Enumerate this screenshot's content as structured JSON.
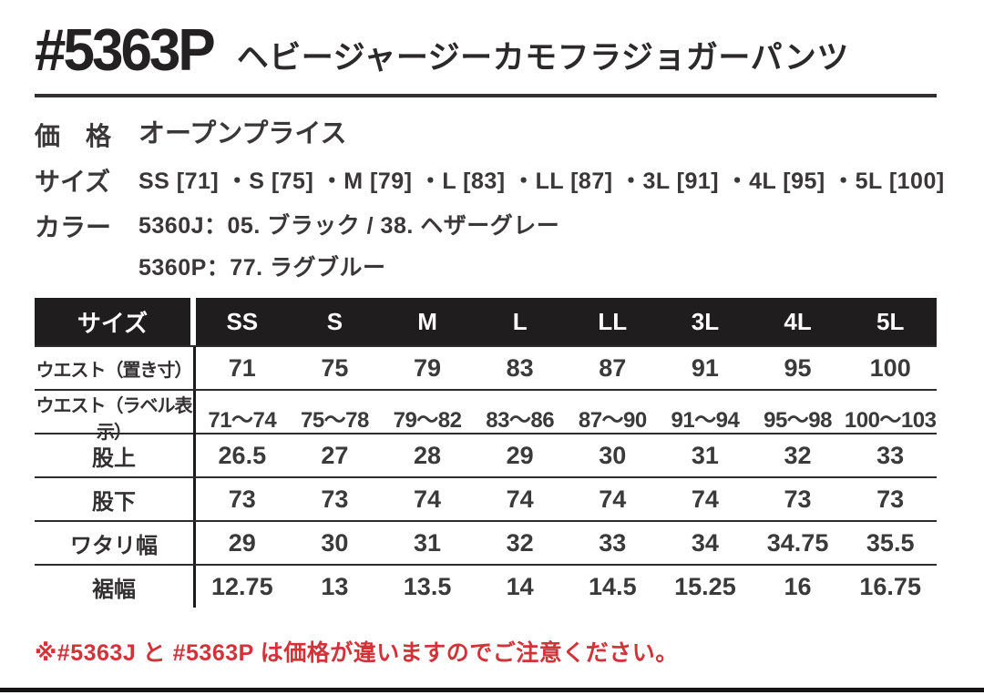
{
  "header": {
    "product_code": "#5363P",
    "product_name": "ヘビージャージーカモフラジョガーパンツ"
  },
  "info": {
    "price_label": "価　格",
    "price_value": "オープンプライス",
    "size_label": "サイズ",
    "size_value": "SS [71] ・S [75] ・M [79] ・L [83] ・LL [87] ・3L [91] ・4L [95] ・5L [100]",
    "color_label": "カラー",
    "color_line1": "5360J：05. ブラック / 38. ヘザーグレー",
    "color_line2": "5360P：77. ラグブルー"
  },
  "size_table": {
    "header": [
      "サイズ",
      "SS",
      "S",
      "M",
      "L",
      "LL",
      "3L",
      "4L",
      "5L"
    ],
    "rows": [
      {
        "label": "ウエスト（置き寸）",
        "values": [
          "71",
          "75",
          "79",
          "83",
          "87",
          "91",
          "95",
          "100"
        ]
      },
      {
        "label": "ウエスト（ラベル表示）",
        "values": [
          "71〜74",
          "75〜78",
          "79〜82",
          "83〜86",
          "87〜90",
          "91〜94",
          "95〜98",
          "100〜103"
        ]
      },
      {
        "label": "股上",
        "values": [
          "26.5",
          "27",
          "28",
          "29",
          "30",
          "31",
          "32",
          "33"
        ]
      },
      {
        "label": "股下",
        "values": [
          "73",
          "73",
          "74",
          "74",
          "74",
          "74",
          "73",
          "73"
        ]
      },
      {
        "label": "ワタリ幅",
        "values": [
          "29",
          "30",
          "31",
          "32",
          "33",
          "34",
          "34.75",
          "35.5"
        ]
      },
      {
        "label": "裾幅",
        "values": [
          "12.75",
          "13",
          "13.5",
          "14",
          "14.5",
          "15.25",
          "16",
          "16.75"
        ]
      }
    ]
  },
  "footer": {
    "note": "※#5363J と #5363P は価格が違いますのでご注意ください。"
  },
  "colors": {
    "note_red": "#d23338",
    "table_header_bg": "#201d1e",
    "text": "#2d2b2c"
  }
}
